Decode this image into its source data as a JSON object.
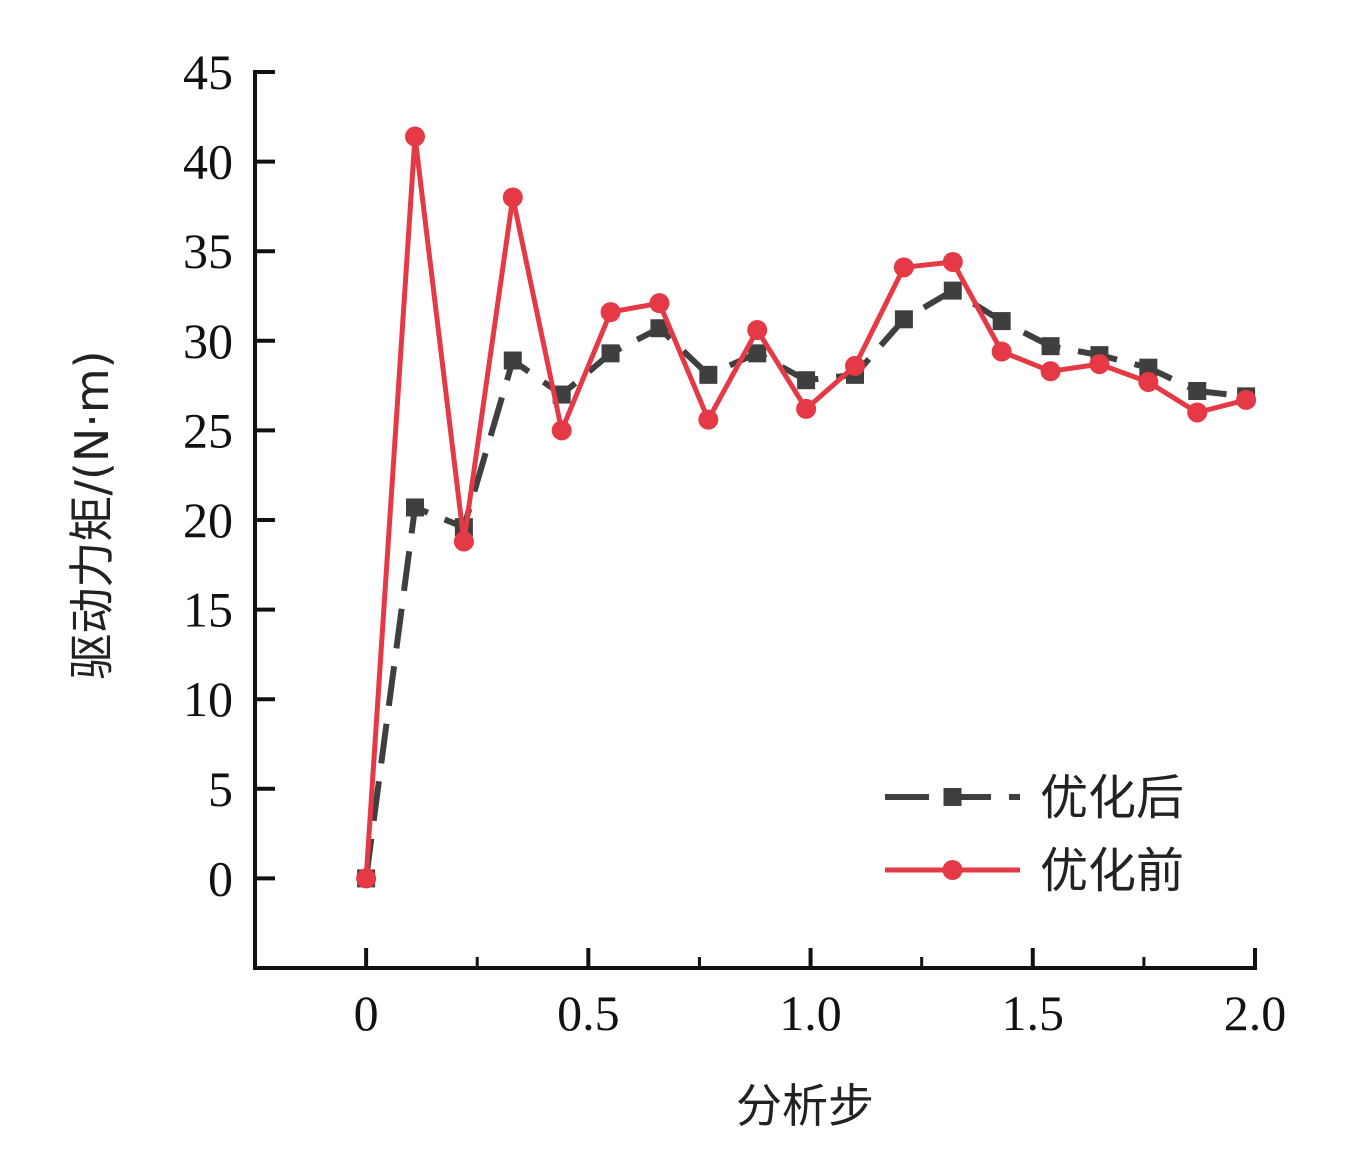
{
  "chart_data": {
    "type": "line",
    "title": "",
    "xlabel": "分析步",
    "ylabel": "驱动力矩/(N·m)",
    "xlim": [
      -0.25,
      2.0
    ],
    "ylim": [
      -5,
      45
    ],
    "xticks": [
      0,
      0.5,
      1.0,
      1.5,
      2.0
    ],
    "xtick_labels": [
      "0",
      "0.5",
      "1.0",
      "1.5",
      "2.0"
    ],
    "xminor": [
      0.25,
      0.75,
      1.25,
      1.75
    ],
    "yticks": [
      0,
      5,
      10,
      15,
      20,
      25,
      30,
      35,
      40,
      45
    ],
    "ytick_labels": [
      "0",
      "5",
      "10",
      "15",
      "20",
      "25",
      "30",
      "35",
      "40",
      "45"
    ],
    "grid": false,
    "legend_position": "bottom-right",
    "series": [
      {
        "name": "优化后",
        "color": "#3f3f3f",
        "marker": "square",
        "dash": true,
        "x": [
          0,
          0.11,
          0.22,
          0.33,
          0.44,
          0.55,
          0.66,
          0.77,
          0.88,
          0.99,
          1.1,
          1.21,
          1.32,
          1.43,
          1.54,
          1.65,
          1.76,
          1.87,
          1.98
        ],
        "y": [
          0,
          20.7,
          19.6,
          28.9,
          27.0,
          29.3,
          30.7,
          28.1,
          29.3,
          27.8,
          28.1,
          31.2,
          32.8,
          31.1,
          29.7,
          29.2,
          28.5,
          27.2,
          26.9
        ]
      },
      {
        "name": "优化前",
        "color": "#e63946",
        "marker": "circle",
        "dash": false,
        "x": [
          0,
          0.11,
          0.22,
          0.33,
          0.44,
          0.55,
          0.66,
          0.77,
          0.88,
          0.99,
          1.1,
          1.21,
          1.32,
          1.43,
          1.54,
          1.65,
          1.76,
          1.87,
          1.98
        ],
        "y": [
          0,
          41.4,
          18.8,
          38.0,
          25.0,
          31.6,
          32.1,
          25.6,
          30.6,
          26.2,
          28.6,
          34.1,
          34.4,
          29.4,
          28.3,
          28.7,
          27.7,
          26.0,
          26.7
        ]
      }
    ]
  }
}
